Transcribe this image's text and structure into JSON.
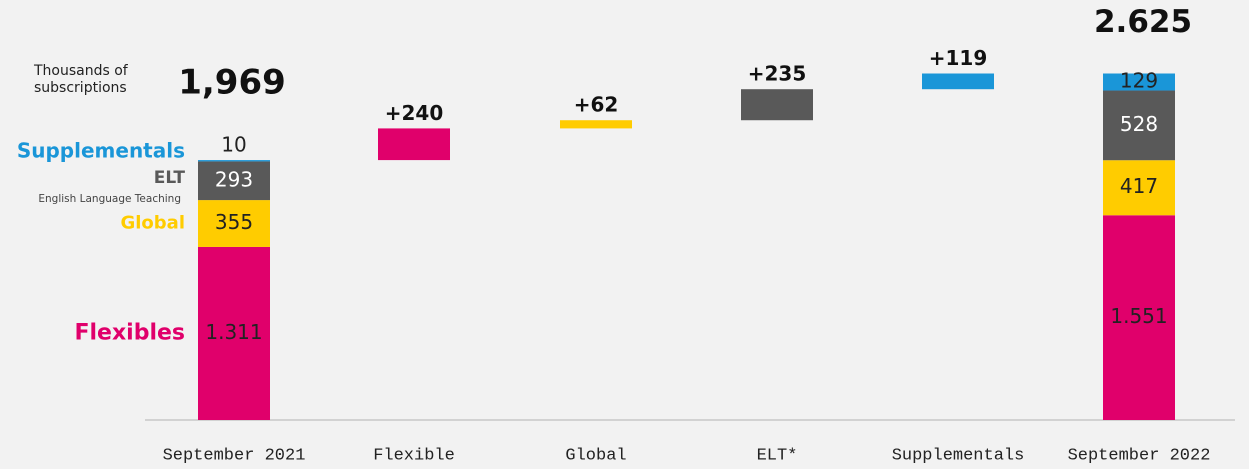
{
  "chart_data": {
    "type": "waterfall",
    "unit_label": "Thousands of subscriptions",
    "categories": [
      "September 2021",
      "Flexible",
      "Global",
      "ELT*",
      "Supplementals",
      "September 2022"
    ],
    "series": [
      {
        "name": "Flexibles",
        "color": "#e0006b",
        "values": [
          1311,
          240,
          null,
          null,
          null,
          1551
        ],
        "value_labels": [
          "1.311",
          "+240",
          null,
          null,
          null,
          "1.551"
        ]
      },
      {
        "name": "Global",
        "color": "#ffcc00",
        "values": [
          355,
          null,
          62,
          null,
          null,
          417
        ],
        "value_labels": [
          null,
          null,
          "+62",
          null,
          null,
          null
        ]
      },
      {
        "name": "ELT",
        "note": "English Language Teaching",
        "color": "#595959",
        "values": [
          293,
          null,
          null,
          235,
          null,
          528
        ],
        "value_labels": [
          null,
          null,
          null,
          "+235",
          null,
          null
        ]
      },
      {
        "name": "Supplementals",
        "color": "#1a96d8",
        "values": [
          10,
          null,
          null,
          null,
          119,
          129
        ],
        "value_labels": [
          null,
          null,
          null,
          null,
          "+119",
          null
        ]
      }
    ],
    "totals": [
      1969,
      null,
      null,
      null,
      null,
      2625
    ],
    "total_labels": [
      "1,969",
      null,
      null,
      null,
      null,
      "2.625"
    ],
    "ylim": [
      0,
      3150
    ]
  }
}
